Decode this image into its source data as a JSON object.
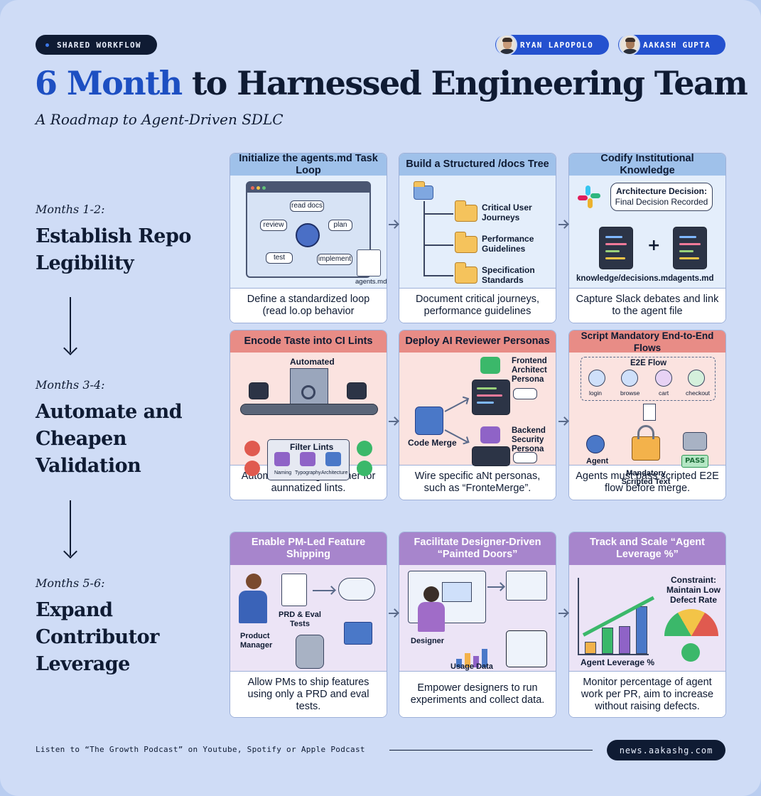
{
  "header": {
    "badge": "SHARED WORKFLOW",
    "authors": [
      "RYAN LAPOPOLO",
      "AAKASH GUPTA"
    ],
    "title_accent": "6 Month",
    "title_rest": "to Harnessed Engineering Team",
    "subtitle": "A Roadmap to Agent-Driven SDLC"
  },
  "phases": [
    {
      "label": "Months 1-2:",
      "name": [
        "Establish Repo",
        "Legibility"
      ]
    },
    {
      "label": "Months 3-4:",
      "name": [
        "Automate and",
        "Cheapen",
        "Validation"
      ]
    },
    {
      "label": "Months 5-6:",
      "name": [
        "Expand",
        "Contributor",
        "Leverage"
      ]
    }
  ],
  "cards": {
    "c11": {
      "title": "Initialize the agents.md Task Loop",
      "desc": "Define a standardized loop (read lo.op behavior",
      "labels": {
        "read_docs": "read docs",
        "plan": "plan",
        "implement": "implement",
        "test": "test",
        "review": "review",
        "file": "agents.md"
      }
    },
    "c12": {
      "title": "Build a Structured /docs Tree",
      "desc": "Document critical journeys, performance guidelines",
      "folders": [
        "Critical User Journeys",
        "Performance Guidelines",
        "Specification Standards"
      ]
    },
    "c13": {
      "title": "Codify Institutional Knowledge",
      "desc": "Capture Slack debates and link to the agent file",
      "bubble_title": "Architecture Decision:",
      "bubble_text": "Final Decision Recorded",
      "file1": "knowledge/decisions.md",
      "plus": "+",
      "file2": "agents.md"
    },
    "c21": {
      "title": "Encode Taste into CI Lints",
      "desc": "Automated linting scanner for aunnatized lints.",
      "automated": "Automated",
      "filter": "Filter Lints",
      "lints": [
        "Naming",
        "Typography",
        "Architecture"
      ]
    },
    "c22": {
      "title": "Deploy AI Reviewer Personas",
      "desc": "Wire specific aNt personas, such as “FronteMerge”.",
      "merge": "Code Merge",
      "persona1": "Frontend Architect Persona",
      "persona2": "Backend Security Persona"
    },
    "c23": {
      "title": "Script Mandatory End-to-End Flows",
      "desc": "Agents must pass scripted E2E flow before merge.",
      "flow_title": "E2E Flow",
      "steps": [
        "login",
        "browse",
        "cart",
        "checkout"
      ],
      "agent": "Agent",
      "mandatory": "Mandatory Scripted Text",
      "pass": "PASS"
    },
    "c31": {
      "title": "Enable PM-Led Feature Shipping",
      "desc": "Allow PMs to ship features using only a PRD and eval tests.",
      "pm": "Product Manager",
      "prd": "PRD & Eval Tests"
    },
    "c32": {
      "title": "Facilitate Designer-Driven “Painted Doors”",
      "desc": "Empower designers to run experiments and collect data.",
      "designer": "Designer",
      "usage": "Usage Data"
    },
    "c33": {
      "title": "Track and Scale “Agent Leverage %”",
      "desc": "Monitor percentage of agent work per PR, aim to increase without raising defects.",
      "constraint": "Constraint: Maintain Low Defect Rate",
      "leverage": "Agent Leverage %"
    }
  },
  "footer": {
    "text": "Listen to “The Growth Podcast” on Youtube, Spotify or Apple Podcast",
    "link": "news.aakashg.com"
  },
  "colors": {
    "navy": "#0f1b33",
    "accent": "#1d4fc2",
    "row1": "#9fc1ea",
    "row2": "#e88c86",
    "row3": "#a785cc"
  }
}
